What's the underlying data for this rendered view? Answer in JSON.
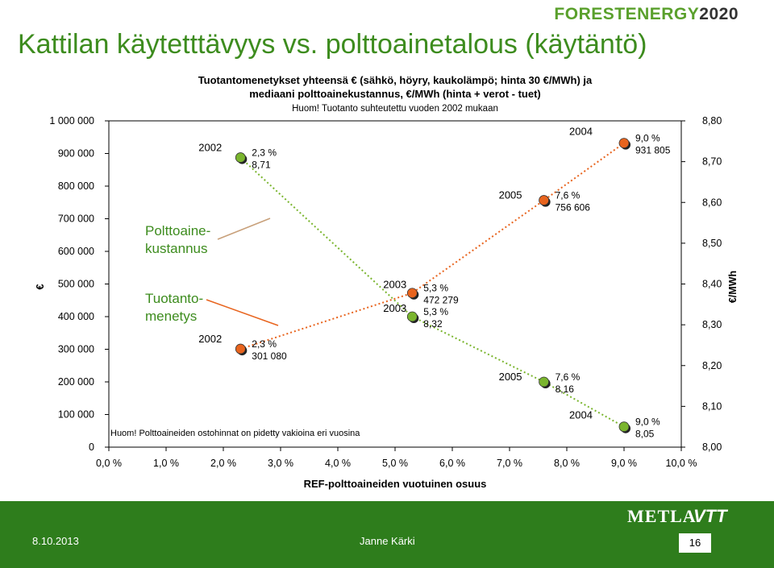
{
  "brand": {
    "part1": "FORESTENERGY",
    "part2": "2020"
  },
  "slide_title": "Kattilan käytetttävyys vs. polttoainetalous (käytäntö)",
  "chart_data": {
    "type": "scatter",
    "title_lines": [
      "Tuotantomenetykset yhteensä € (sähkö, höyry, kaukolämpö; hinta 30 €/MWh) ja",
      "mediaani polttoainekustannus, €/MWh (hinta + verot - tuet)"
    ],
    "note_top": "Huom! Tuotanto suhteutettu vuoden 2002 mukaan",
    "note_bottom": "Huom! Polttoaineiden ostohinnat on pidetty vakioina eri vuosina",
    "xlabel": "REF-polttoaineiden vuotuinen osuus",
    "ylabel_left": "€",
    "ylabel_right": "€/MWh",
    "xlim": [
      0,
      10
    ],
    "ylim_left": [
      0,
      1000000
    ],
    "ylim_right": [
      8.0,
      8.8
    ],
    "x_ticks": [
      "0,0 %",
      "1,0 %",
      "2,0 %",
      "3,0 %",
      "4,0 %",
      "5,0 %",
      "6,0 %",
      "7,0 %",
      "8,0 %",
      "9,0 %",
      "10,0 %"
    ],
    "y_left_ticks": [
      "0",
      "100 000",
      "200 000",
      "300 000",
      "400 000",
      "500 000",
      "600 000",
      "700 000",
      "800 000",
      "900 000",
      "1 000 000"
    ],
    "y_right_ticks": [
      "8,00",
      "8,10",
      "8,20",
      "8,30",
      "8,40",
      "8,50",
      "8,60",
      "8,70",
      "8,80"
    ],
    "series": [
      {
        "name": "Tuotantomenetys",
        "axis": "left",
        "color": "#e8641e",
        "points": [
          {
            "year": "2002",
            "x": 2.3,
            "y": 301080,
            "label1": "2,3 %",
            "label2": "301 080"
          },
          {
            "year": "2003",
            "x": 5.3,
            "y": 472279,
            "label1": "5,3 %",
            "label2": "472 279"
          },
          {
            "year": "2005",
            "x": 7.6,
            "y": 756606,
            "label1": "7,6 %",
            "label2": "756 606"
          },
          {
            "year": "2004",
            "x": 9.0,
            "y": 931805,
            "label1": "9,0 %",
            "label2": "931 805"
          }
        ]
      },
      {
        "name": "Polttoainekustannus",
        "axis": "right",
        "color": "#7ab52e",
        "points": [
          {
            "year": "2002",
            "x": 2.3,
            "y": 8.71,
            "label1": "2,3 %",
            "label2": "8,71"
          },
          {
            "year": "2003",
            "x": 5.3,
            "y": 8.32,
            "label1": "5,3 %",
            "label2": "8,32"
          },
          {
            "year": "2005",
            "x": 7.6,
            "y": 8.16,
            "label1": "7,6 %",
            "label2": "8,16"
          },
          {
            "year": "2004",
            "x": 9.0,
            "y": 8.05,
            "label1": "9,0 %",
            "label2": "8,05"
          }
        ]
      }
    ],
    "callouts": [
      {
        "lines": [
          "Polttoaine-",
          "kustannus"
        ],
        "series": "Polttoainekustannus"
      },
      {
        "lines": [
          "Tuotanto-",
          "menetys"
        ],
        "series": "Tuotantomenetys"
      }
    ]
  },
  "footer": {
    "date": "8.10.2013",
    "author": "Janne Kärki",
    "page": "16",
    "logo_metla": "METLA",
    "logo_vtt": "VTT",
    "bg_color": "#2e7d1c"
  }
}
